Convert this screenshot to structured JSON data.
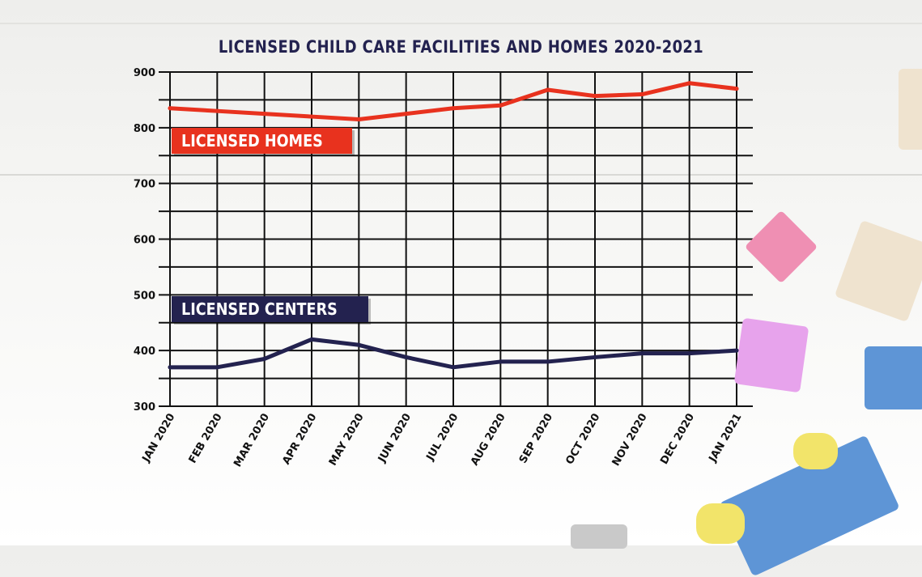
{
  "chart_data": {
    "type": "line",
    "title": "LICENSED CHILD CARE FACILITIES AND HOMES 2020-2021",
    "categories": [
      "JAN 2020",
      "FEB 2020",
      "MAR 2020",
      "APR 2020",
      "MAY 2020",
      "JUN 2020",
      "JUL 2020",
      "AUG 2020",
      "SEP 2020",
      "OCT 2020",
      "NOV 2020",
      "DEC 2020",
      "JAN 2021"
    ],
    "ylim": [
      300,
      900
    ],
    "yticks": [
      300,
      400,
      500,
      600,
      700,
      800,
      900
    ],
    "grid": true,
    "series": [
      {
        "name": "LICENSED HOMES",
        "color": "#e8321e",
        "values": [
          835,
          830,
          825,
          820,
          815,
          825,
          835,
          840,
          868,
          857,
          860,
          880,
          870
        ]
      },
      {
        "name": "LICENSED CENTERS",
        "color": "#23224f",
        "values": [
          370,
          370,
          385,
          420,
          410,
          388,
          370,
          380,
          380,
          388,
          395,
          395,
          400
        ]
      }
    ]
  }
}
